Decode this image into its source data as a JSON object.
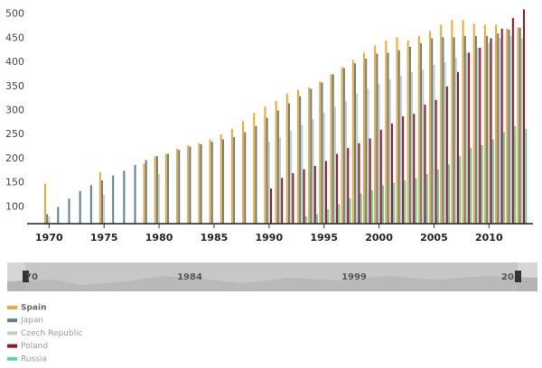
{
  "chart_data": {
    "type": "bar",
    "x": [
      1970,
      1971,
      1972,
      1973,
      1974,
      1975,
      1976,
      1977,
      1978,
      1979,
      1980,
      1981,
      1982,
      1983,
      1984,
      1985,
      1986,
      1987,
      1988,
      1989,
      1990,
      1991,
      1992,
      1993,
      1994,
      1995,
      1996,
      1997,
      1998,
      1999,
      2000,
      2001,
      2002,
      2003,
      2004,
      2005,
      2006,
      2007,
      2008,
      2009,
      2010,
      2011,
      2012,
      2013
    ],
    "series": [
      {
        "name": "Spain",
        "color": "#f0a830",
        "values": [
          148,
          null,
          null,
          null,
          null,
          172,
          null,
          null,
          null,
          190,
          205,
          210,
          220,
          228,
          232,
          240,
          250,
          262,
          278,
          295,
          308,
          320,
          335,
          343,
          348,
          360,
          375,
          390,
          405,
          420,
          435,
          445,
          452,
          445,
          455,
          465,
          478,
          488,
          488,
          480,
          478,
          478,
          470,
          472
        ]
      },
      {
        "name": "Japan",
        "color": "#5b7f8e",
        "values": [
          85,
          100,
          117,
          133,
          145,
          155,
          165,
          175,
          187,
          197,
          205,
          210,
          218,
          225,
          230,
          235,
          240,
          245,
          255,
          268,
          285,
          300,
          315,
          330,
          345,
          358,
          375,
          388,
          398,
          408,
          418,
          420,
          425,
          432,
          440,
          450,
          452,
          452,
          455,
          455,
          455,
          460,
          468,
          472
        ]
      },
      {
        "name": "Czech Republic",
        "color": "#c9c9c9",
        "values": [
          80,
          null,
          null,
          null,
          null,
          125,
          null,
          null,
          null,
          null,
          168,
          null,
          null,
          null,
          null,
          null,
          null,
          null,
          null,
          null,
          235,
          245,
          258,
          270,
          282,
          295,
          308,
          320,
          335,
          345,
          355,
          365,
          372,
          380,
          385,
          395,
          400,
          410,
          420,
          430,
          440,
          450,
          455,
          450
        ]
      },
      {
        "name": "Poland",
        "color": "#8b1a22",
        "values": [
          null,
          null,
          null,
          null,
          null,
          null,
          null,
          null,
          null,
          null,
          null,
          null,
          null,
          null,
          null,
          null,
          null,
          null,
          null,
          null,
          138,
          160,
          170,
          178,
          185,
          195,
          210,
          222,
          232,
          242,
          260,
          273,
          288,
          293,
          312,
          322,
          350,
          380,
          420,
          430,
          450,
          470,
          492,
          510
        ]
      },
      {
        "name": "Russia",
        "color": "#5fcf9d",
        "values": [
          null,
          null,
          null,
          null,
          null,
          null,
          null,
          null,
          null,
          null,
          null,
          null,
          null,
          null,
          null,
          null,
          null,
          null,
          null,
          null,
          null,
          null,
          null,
          80,
          85,
          95,
          105,
          118,
          128,
          135,
          145,
          150,
          155,
          160,
          168,
          178,
          188,
          205,
          222,
          228,
          240,
          255,
          268,
          262
        ]
      }
    ],
    "xlim": [
      1968,
      2014
    ],
    "xticks": [
      1970,
      1975,
      1980,
      1985,
      1990,
      1995,
      2000,
      2005,
      2010
    ],
    "ylim": [
      65,
      520
    ],
    "yticks": [
      100,
      150,
      200,
      250,
      300,
      350,
      400,
      450,
      500
    ],
    "grid": false,
    "legend": "bottom-left",
    "navigator": {
      "labels": [
        "70",
        "1984",
        "1999",
        "20"
      ]
    }
  }
}
